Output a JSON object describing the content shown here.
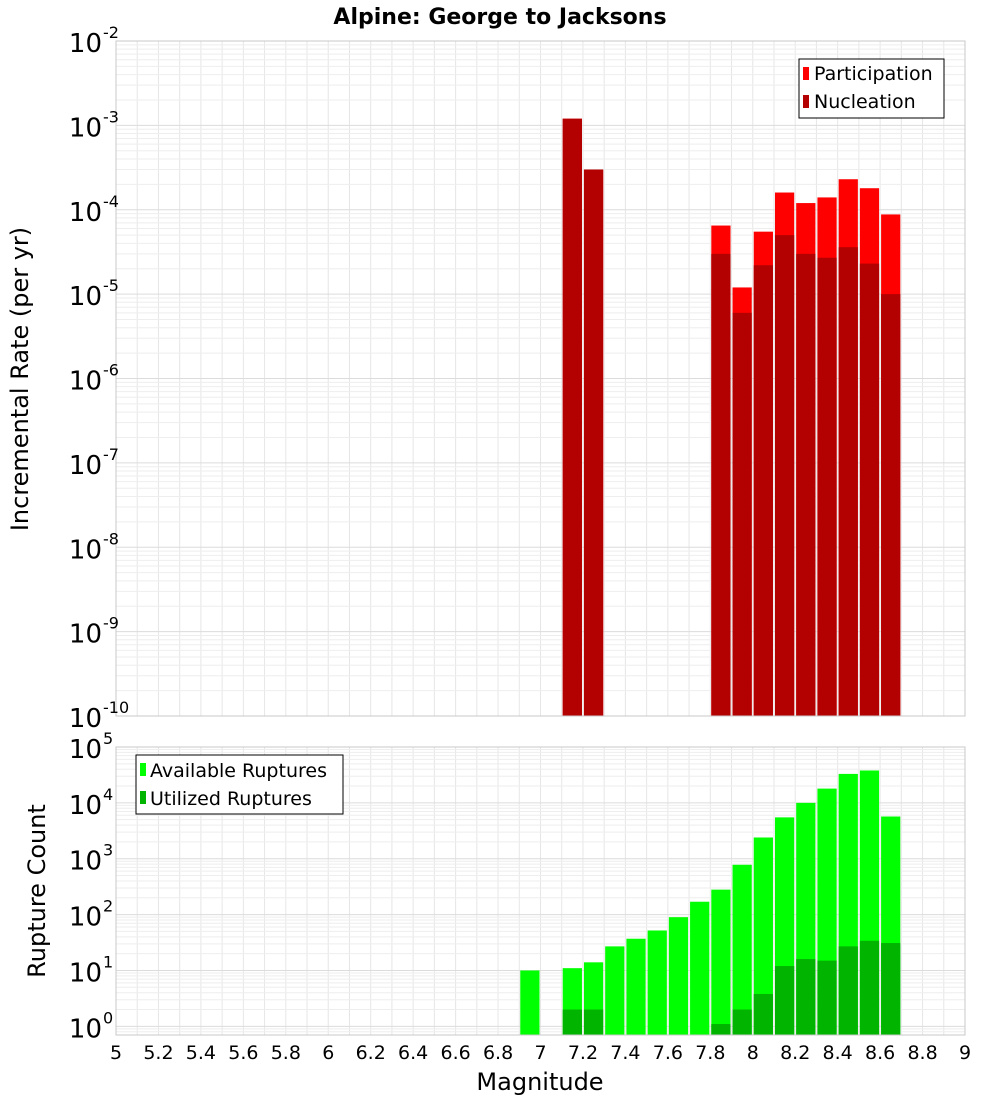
{
  "title": "Alpine: George to Jacksons",
  "colors": {
    "participation": "#ff0000",
    "nucleation": "#b30000",
    "available": "#00ff00",
    "utilized": "#00b400",
    "grid": "#e6e6e6",
    "frame": "#c8c8c8"
  },
  "chart_data": [
    {
      "type": "bar",
      "yscale": "log",
      "xlim": [
        5,
        9
      ],
      "ylim": [
        1e-10,
        0.01
      ],
      "xlabel": "Magnitude",
      "ylabel": "Incremental Rate (per yr)",
      "ytick_exponents": [
        -10,
        -9,
        -8,
        -7,
        -6,
        -5,
        -4,
        -3,
        -2
      ],
      "grid": true,
      "legend_position": "top-right",
      "bin_width": 0.1,
      "series": [
        {
          "name": "Participation",
          "x": [
            7.15,
            7.25,
            7.85,
            7.95,
            8.05,
            8.15,
            8.25,
            8.35,
            8.45,
            8.55,
            8.65
          ],
          "values": [
            0.0012,
            0.0003,
            6.5e-05,
            1.2e-05,
            5.5e-05,
            0.00016,
            0.00012,
            0.00014,
            0.00023,
            0.00018,
            8.8e-05
          ]
        },
        {
          "name": "Nucleation",
          "x": [
            7.15,
            7.25,
            7.85,
            7.95,
            8.05,
            8.15,
            8.25,
            8.35,
            8.45,
            8.55,
            8.65
          ],
          "values": [
            0.0012,
            0.0003,
            3e-05,
            6e-06,
            2.2e-05,
            5e-05,
            3e-05,
            2.7e-05,
            3.6e-05,
            2.3e-05,
            1e-05
          ]
        }
      ]
    },
    {
      "type": "bar",
      "yscale": "log",
      "xlim": [
        5,
        9
      ],
      "ylim": [
        0.7,
        100000
      ],
      "xlabel": "Magnitude",
      "ylabel": "Rupture Count",
      "ytick_exponents": [
        0,
        1,
        2,
        3,
        4,
        5
      ],
      "xticks": [
        "5",
        "5.2",
        "5.4",
        "5.6",
        "5.8",
        "6",
        "6.2",
        "6.4",
        "6.6",
        "6.8",
        "7",
        "7.2",
        "7.4",
        "7.6",
        "7.8",
        "8",
        "8.2",
        "8.4",
        "8.6",
        "8.8",
        "9"
      ],
      "grid": true,
      "legend_position": "top-left",
      "bin_width": 0.1,
      "series": [
        {
          "name": "Available Ruptures",
          "x": [
            6.95,
            7.15,
            7.25,
            7.35,
            7.45,
            7.55,
            7.65,
            7.75,
            7.85,
            7.95,
            8.05,
            8.15,
            8.25,
            8.35,
            8.45,
            8.55,
            8.65
          ],
          "values": [
            10,
            11,
            14,
            27,
            37,
            52,
            90,
            170,
            280,
            780,
            2400,
            5500,
            10000,
            18000,
            33000,
            38000,
            5700
          ]
        },
        {
          "name": "Utilized Ruptures",
          "x": [
            7.15,
            7.25,
            7.85,
            7.95,
            8.05,
            8.15,
            8.25,
            8.35,
            8.45,
            8.55,
            8.65
          ],
          "values": [
            2,
            2,
            1.1,
            2,
            3.8,
            12,
            16,
            15,
            27,
            34,
            31
          ]
        }
      ]
    }
  ]
}
